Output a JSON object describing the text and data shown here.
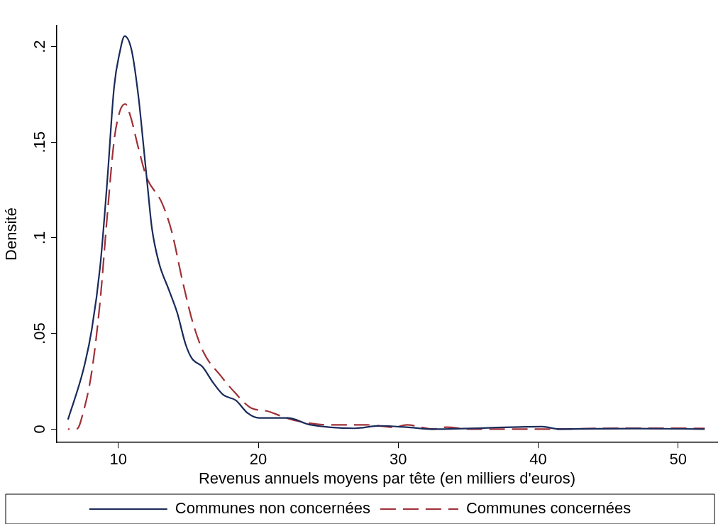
{
  "chart_data": {
    "type": "line",
    "xlabel": "Revenus annuels moyens par tête (en milliers d'euros)",
    "ylabel": "Densité",
    "xlim": [
      5.6,
      52.8
    ],
    "xticks": [
      10,
      20,
      30,
      40,
      50
    ],
    "ylim": [
      -0.007,
      0.211
    ],
    "yticks": [
      {
        "value": 0,
        "label": "0"
      },
      {
        "value": 0.05,
        "label": ".05"
      },
      {
        "value": 0.1,
        "label": ".1"
      },
      {
        "value": 0.15,
        "label": ".15"
      },
      {
        "value": 0.2,
        "label": ".2"
      }
    ],
    "grid": false,
    "legend": "bottom",
    "marker": "none",
    "series": [
      {
        "name": "Communes non concernées",
        "color": "#1a2a5a",
        "line_style": "solid",
        "x": [
          6.4,
          7.5,
          8.1,
          8.7,
          9.2,
          9.7,
          10.1,
          10.45,
          10.95,
          11.45,
          11.8,
          12.1,
          12.4,
          12.9,
          13.6,
          14.2,
          14.8,
          15.25,
          16.0,
          16.8,
          17.5,
          18.4,
          19.25,
          20.05,
          22.1,
          23.7,
          26.9,
          28.3,
          28.75,
          30.6,
          32.5,
          40.3,
          41.5,
          47,
          51.9
        ],
        "values": [
          0.005,
          0.031,
          0.052,
          0.085,
          0.129,
          0.179,
          0.197,
          0.2055,
          0.198,
          0.173,
          0.148,
          0.126,
          0.105,
          0.087,
          0.073,
          0.061,
          0.0445,
          0.037,
          0.0327,
          0.024,
          0.0179,
          0.015,
          0.0083,
          0.0058,
          0.0058,
          0.0023,
          0.0004,
          0.0016,
          0.0017,
          0.001,
          0,
          0.0013,
          0,
          0.0003,
          0
        ]
      },
      {
        "name": "Communes concernées",
        "color": "#a03038",
        "line_style": "dashed",
        "x": [
          6.4,
          7.05,
          7.5,
          8.1,
          8.7,
          9.2,
          9.7,
          10.1,
          10.5,
          10.85,
          11.45,
          12.0,
          13.1,
          13.8,
          14.6,
          15.35,
          16.1,
          17.3,
          18.3,
          19.5,
          20.6,
          21.6,
          22.75,
          25.1,
          27.8,
          29.7,
          30.6,
          32.5,
          33.4,
          35.2,
          40.8,
          46.3,
          51.9
        ],
        "values": [
          0,
          0.0002,
          0.009,
          0.03,
          0.067,
          0.111,
          0.151,
          0.166,
          0.17,
          0.164,
          0.1465,
          0.132,
          0.1185,
          0.1037,
          0.077,
          0.055,
          0.04,
          0.028,
          0.0193,
          0.011,
          0.0095,
          0.0069,
          0.0043,
          0.0022,
          0.0022,
          0.001,
          0.0022,
          0,
          0.001,
          0,
          0,
          0.0005,
          0.0004
        ]
      }
    ]
  }
}
